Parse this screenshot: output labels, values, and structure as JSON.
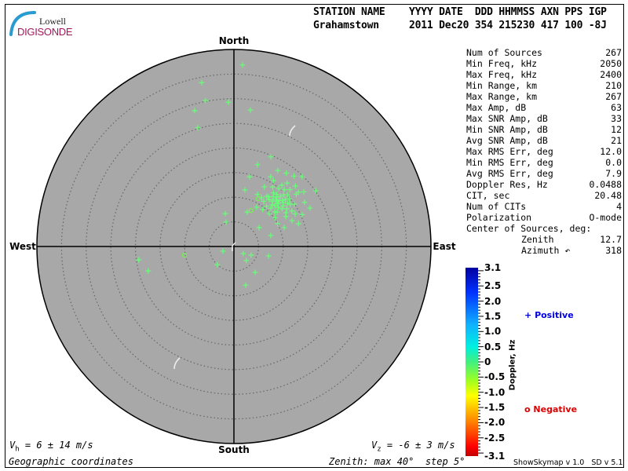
{
  "logo": {
    "line1": "Lowell",
    "line2": "DIGISONDE"
  },
  "header": {
    "labels": "STATION NAME    YYYY DATE  DDD HHMMSS AXN PPS IGP",
    "values": "Grahamstown     2011 Dec20 354 215230 417 100 -8J"
  },
  "stats": [
    {
      "label": "Num of Sources",
      "value": "267"
    },
    {
      "label": "Min Freq, kHz",
      "value": "2050"
    },
    {
      "label": "Max Freq, kHz",
      "value": "2400"
    },
    {
      "label": "Min Range, km",
      "value": "210"
    },
    {
      "label": "Max Range, km",
      "value": "267"
    },
    {
      "label": "Max Amp, dB",
      "value": "63"
    },
    {
      "label": "Max SNR Amp, dB",
      "value": "33"
    },
    {
      "label": "Min SNR Amp, dB",
      "value": "12"
    },
    {
      "label": "Avg SNR Amp, dB",
      "value": "21"
    },
    {
      "label": "Max RMS Err, deg",
      "value": "12.0"
    },
    {
      "label": "Min RMS Err, deg",
      "value": "0.0"
    },
    {
      "label": "Avg RMS Err, deg",
      "value": "7.9"
    },
    {
      "label": "Doppler Res, Hz",
      "value": "0.0488"
    },
    {
      "label": "CIT, sec",
      "value": "20.48"
    },
    {
      "label": "Num of CITs",
      "value": "4"
    },
    {
      "label": "Polarization",
      "value": "O-mode"
    },
    {
      "label": "Center of Sources, deg:",
      "value": ""
    },
    {
      "label": "Zenith",
      "value": "12.7"
    },
    {
      "label": "Azimuth ↶",
      "value": "318"
    }
  ],
  "skymap": {
    "directions": {
      "north": "North",
      "south": "South",
      "east": "East",
      "west": "West"
    },
    "zenith_max_deg": 40,
    "zenith_step_deg": 5,
    "disk_color": "#a8a8a8",
    "positive_sources": [
      [
        36.9,
        2.7
      ],
      [
        33.9,
        348.9
      ],
      [
        30.2,
        349.0
      ],
      [
        29.3,
        357.8
      ],
      [
        28.7,
        343.9
      ],
      [
        27.9,
        6.9
      ],
      [
        25.2,
        343.1
      ],
      [
        19.5,
        262.0
      ],
      [
        18.1,
        254.1
      ],
      [
        8.2,
        163.0
      ],
      [
        5.0,
        222.4
      ],
      [
        7.3,
        105.3
      ],
      [
        6.8,
        140.7
      ],
      [
        2.4,
        126.9
      ],
      [
        3.8,
        138.4
      ],
      [
        3.9,
        116.6
      ],
      [
        2.4,
        246.8
      ],
      [
        5.2,
        342.1
      ],
      [
        6.9,
        345.3
      ],
      [
        17.3,
        16.1
      ],
      [
        19.7,
        22.4
      ],
      [
        20.1,
        55.7
      ],
      [
        17.3,
        63.2
      ],
      [
        13.9,
        70.5
      ],
      [
        10.9,
        69.4
      ],
      [
        7.8,
        73.4
      ],
      [
        6.4,
        53.1
      ],
      [
        7.5,
        21.1
      ],
      [
        11.7,
        11.0
      ],
      [
        14.5,
        12.7
      ],
      [
        16.0,
        27.8
      ],
      [
        18.3,
        35.5
      ],
      [
        19.8,
        44.3
      ],
      [
        17.1,
        49.9
      ],
      [
        14.3,
        53.1
      ],
      [
        10.9,
        49.8
      ],
      [
        12.2,
        33.3
      ],
      [
        14.9,
        37.6
      ],
      [
        13.6,
        46.4
      ],
      [
        12.8,
        42.0
      ],
      [
        13.1,
        44.5
      ],
      [
        13.4,
        48.0
      ],
      [
        12.5,
        46.0
      ],
      [
        13.9,
        43.0
      ],
      [
        12.1,
        40.5
      ],
      [
        14.2,
        47.5
      ],
      [
        13.0,
        50.5
      ],
      [
        11.8,
        45.0
      ],
      [
        12.9,
        38.5
      ],
      [
        14.6,
        44.0
      ],
      [
        13.3,
        41.0
      ],
      [
        12.4,
        52.0
      ],
      [
        15.1,
        46.0
      ],
      [
        11.5,
        42.5
      ],
      [
        13.7,
        39.5
      ],
      [
        12.0,
        48.5
      ],
      [
        14.0,
        51.0
      ],
      [
        13.5,
        36.5
      ],
      [
        12.7,
        43.5
      ],
      [
        11.9,
        37.0
      ],
      [
        15.4,
        41.5
      ],
      [
        10.8,
        44.0
      ],
      [
        14.8,
        49.5
      ],
      [
        13.2,
        54.5
      ],
      [
        12.3,
        35.0
      ],
      [
        16.2,
        44.5
      ],
      [
        11.2,
        51.5
      ],
      [
        15.8,
        38.0
      ],
      [
        10.5,
        39.0
      ],
      [
        16.5,
        50.0
      ],
      [
        12.6,
        57.0
      ],
      [
        14.4,
        33.0
      ],
      [
        9.8,
        47.0
      ],
      [
        13.8,
        58.5
      ],
      [
        11.0,
        33.5
      ],
      [
        15.0,
        55.0
      ],
      [
        10.2,
        55.0
      ],
      [
        16.8,
        40.0
      ],
      [
        9.5,
        38.0
      ],
      [
        12.2,
        60.0
      ],
      [
        17.5,
        45.5
      ],
      [
        14.1,
        62.0
      ],
      [
        11.4,
        29.5
      ],
      [
        15.6,
        31.0
      ],
      [
        18.0,
        52.0
      ],
      [
        13.6,
        27.0
      ],
      [
        16.9,
        58.0
      ],
      [
        10.0,
        62.5
      ],
      [
        9.2,
        30.0
      ],
      [
        15.3,
        65.0
      ],
      [
        18.8,
        40.5
      ],
      [
        12.9,
        66.0
      ],
      [
        11.6,
        24.5
      ],
      [
        17.8,
        30.0
      ]
    ],
    "negative_sources": [
      [
        10.2,
        260.1
      ],
      [
        10.9,
        26.9
      ],
      [
        8.1,
        25.6
      ]
    ]
  },
  "colorbar": {
    "title": "Doppler, Hz",
    "min": -3.1,
    "max": 3.1,
    "tick_labels": [
      "3.1",
      "2.5",
      "2.0",
      "1.5",
      "1.0",
      "0.5",
      "0",
      "-0.5",
      "-1.0",
      "-1.5",
      "-2.0",
      "-2.5",
      "-3.1"
    ]
  },
  "legend": {
    "positive": "Positive",
    "negative": "Negative",
    "positive_color": "#0000dd",
    "negative_color": "#dd0000"
  },
  "footer": {
    "vh": "= 6 ± 14 m/s",
    "vh_sym": "V",
    "vh_sub": "h",
    "vz": "= -6 ± 3 m/s",
    "vz_sym": "V",
    "vz_sub": "z",
    "coords": "Geographic coordinates",
    "zenith_info": "Zenith: max 40°  step 5°",
    "version": "ShowSkymap v 1.0   SD v 5.1"
  }
}
